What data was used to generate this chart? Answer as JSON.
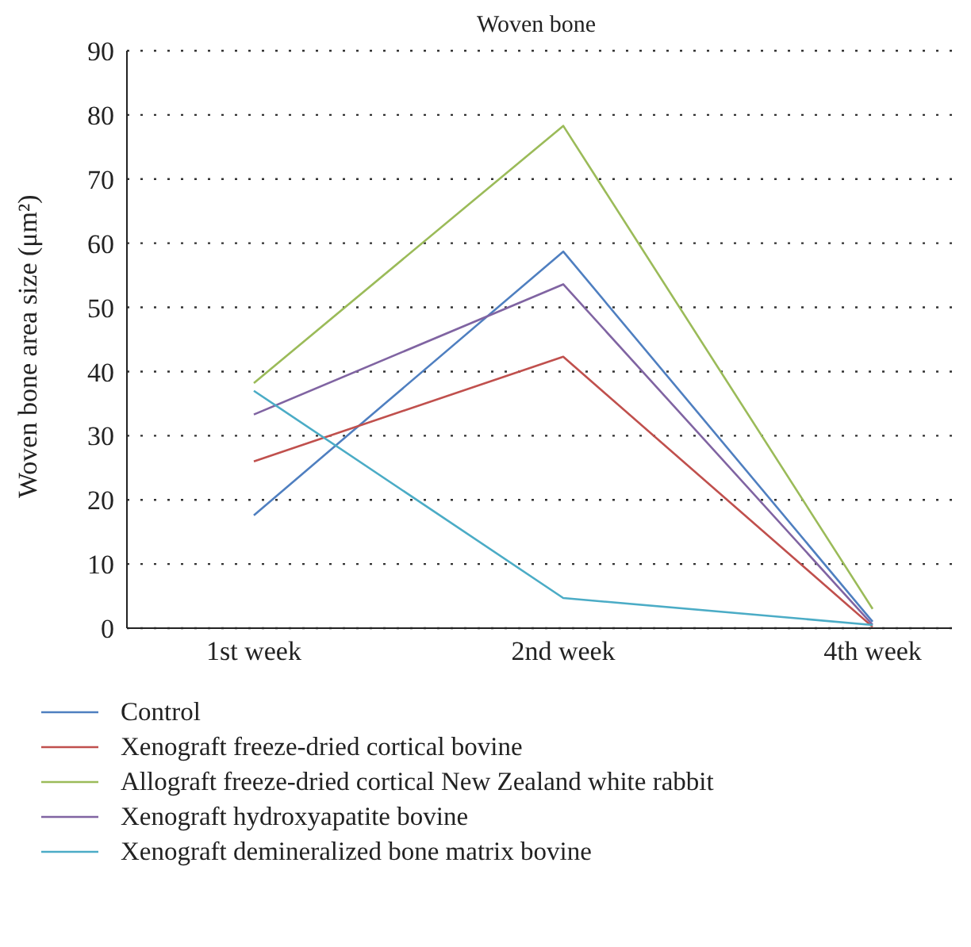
{
  "chart_data": {
    "type": "line",
    "title": "Woven bone",
    "ylabel": "Woven bone area size (μm²)",
    "categories": [
      "1st week",
      "2nd week",
      "4th week"
    ],
    "series": [
      {
        "name": "Control",
        "color": "#4f7fc0",
        "values": [
          17.6,
          58.7,
          1.0
        ]
      },
      {
        "name": "Xenograft freeze-dried cortical bovine",
        "color": "#c0504d",
        "values": [
          26,
          42.3,
          0.2
        ]
      },
      {
        "name": "Allograft freeze-dried cortical New Zealand white rabbit",
        "color": "#9bbb59",
        "values": [
          38.2,
          78.3,
          3.0
        ]
      },
      {
        "name": "Xenograft hydroxyapatite bovine",
        "color": "#8064a2",
        "values": [
          33.3,
          53.6,
          0.5
        ]
      },
      {
        "name": "Xenograft demineralized bone matrix bovine",
        "color": "#4bacc6",
        "values": [
          37,
          4.7,
          0.5
        ]
      }
    ],
    "ylim": [
      0,
      90
    ],
    "yticks": [
      0,
      10,
      20,
      30,
      40,
      50,
      60,
      70,
      80,
      90
    ],
    "grid": "y",
    "legend": "bottom",
    "marker": "none",
    "line_style": "solid"
  }
}
